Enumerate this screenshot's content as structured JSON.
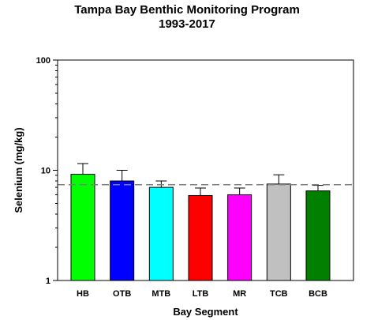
{
  "chart_data": {
    "type": "bar",
    "title": "Tampa Bay Benthic Monitoring Program",
    "subtitle": "1993-2017",
    "xlabel": "Bay Segment",
    "ylabel": "Selenium (mg/kg)",
    "yscale": "log",
    "ylim": [
      1,
      100
    ],
    "yticks": [
      {
        "value": 1,
        "label": "1"
      },
      {
        "value": 10,
        "label": "10"
      },
      {
        "value": 100,
        "label": "100"
      }
    ],
    "categories": [
      "HB",
      "OTB",
      "MTB",
      "LTB",
      "MR",
      "TCB",
      "BCB"
    ],
    "values": [
      9.2,
      8.0,
      7.0,
      5.9,
      6.0,
      7.5,
      6.5
    ],
    "error_upper": [
      11.5,
      10.0,
      8.0,
      6.9,
      6.9,
      9.1,
      7.3
    ],
    "colors": [
      "#00ff00",
      "#0000ff",
      "#00ffff",
      "#ff0000",
      "#ff00ff",
      "#c0c0c0",
      "#007f00"
    ],
    "reference_line": 7.4,
    "grid": false,
    "legend": "none"
  }
}
